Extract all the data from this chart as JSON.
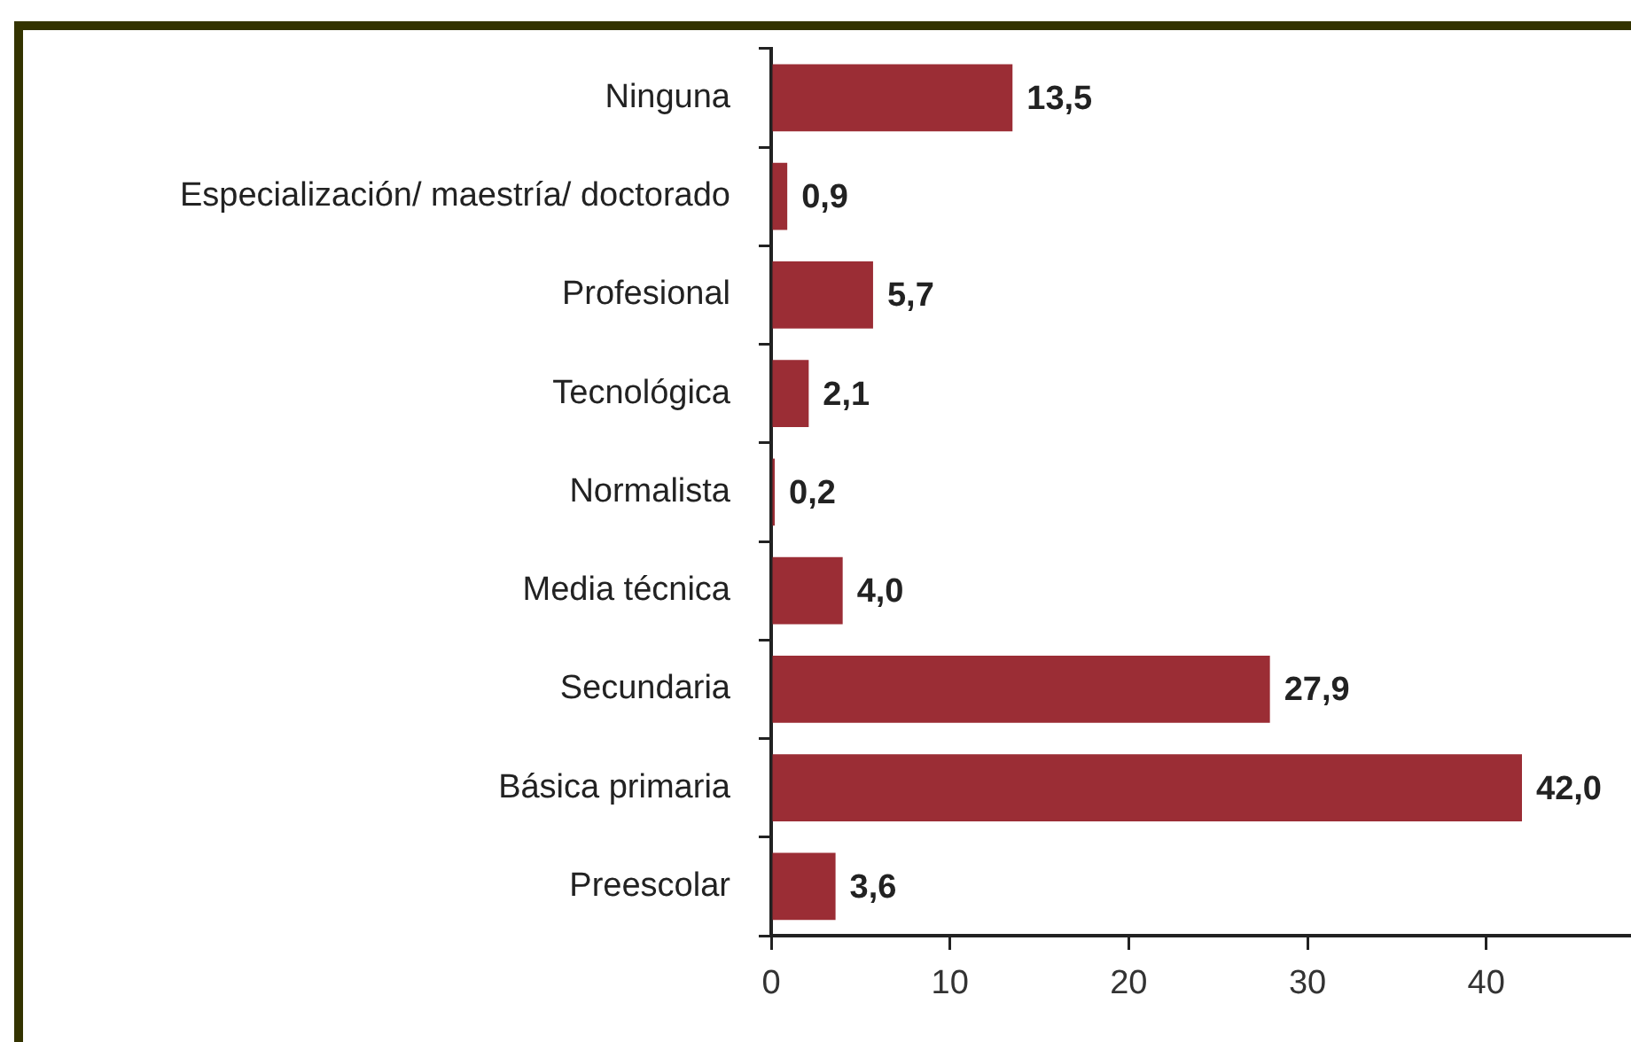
{
  "chart_data": {
    "type": "bar",
    "orientation": "horizontal",
    "categories": [
      "Ninguna",
      "Especialización/ maestría/ doctorado",
      "Profesional",
      "Tecnológica",
      "Normalista",
      "Media técnica",
      "Secundaria",
      "Básica primaria",
      "Preescolar"
    ],
    "values": [
      13.5,
      0.9,
      5.7,
      2.1,
      0.2,
      4.0,
      27.9,
      42.0,
      3.6
    ],
    "value_labels": [
      "13,5",
      "0,9",
      "5,7",
      "2,1",
      "0,2",
      "4,0",
      "27,9",
      "42,0",
      "3,6"
    ],
    "color": "#9b2d35",
    "xlim": [
      0,
      48
    ],
    "xticks": [
      0,
      10,
      20,
      30,
      40
    ],
    "grid": false
  }
}
